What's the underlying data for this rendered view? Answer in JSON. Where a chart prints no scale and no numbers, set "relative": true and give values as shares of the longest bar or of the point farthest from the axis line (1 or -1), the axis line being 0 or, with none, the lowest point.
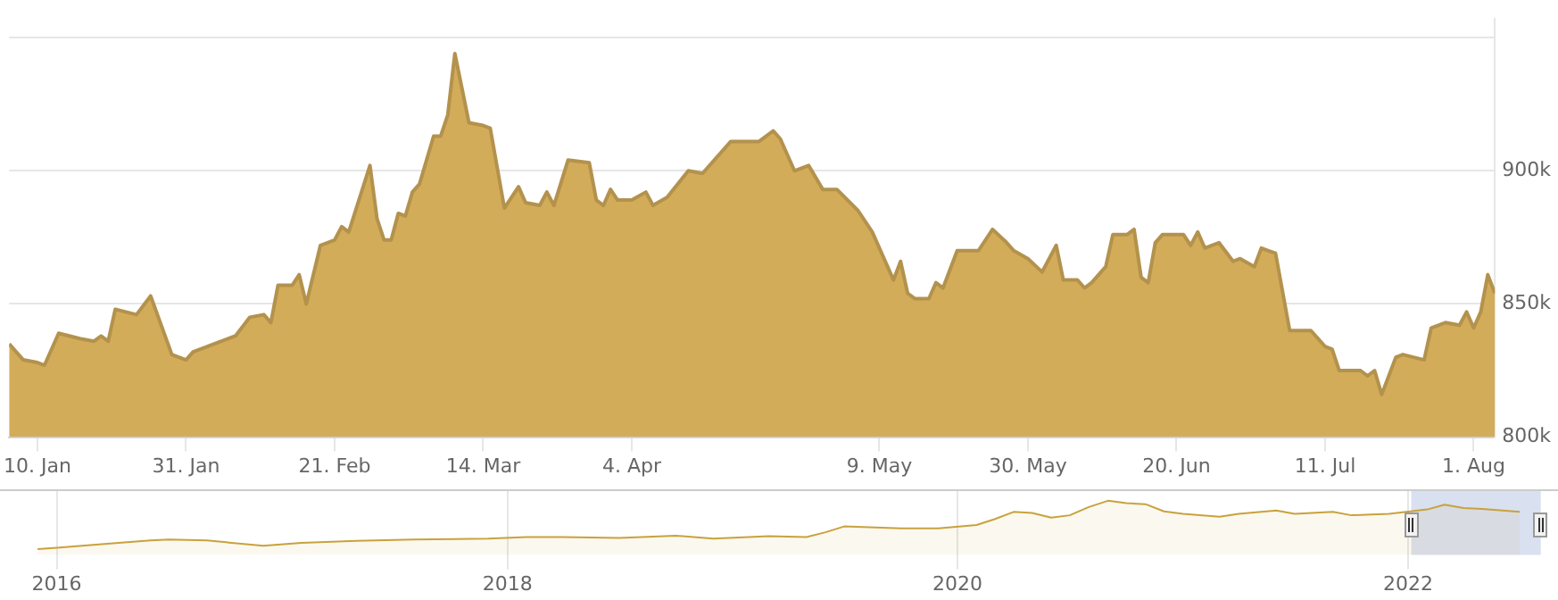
{
  "chart_data": [
    {
      "type": "area",
      "color": "#d3ac5a",
      "x": [
        "2022-01-06",
        "2022-01-08",
        "2022-01-10",
        "2022-01-11",
        "2022-01-13",
        "2022-01-16",
        "2022-01-18",
        "2022-01-19",
        "2022-01-20",
        "2022-01-21",
        "2022-01-24",
        "2022-01-26",
        "2022-01-29",
        "2022-01-31",
        "2022-02-01",
        "2022-02-05",
        "2022-02-07",
        "2022-02-09",
        "2022-02-11",
        "2022-02-12",
        "2022-02-13",
        "2022-02-15",
        "2022-02-16",
        "2022-02-17",
        "2022-02-19",
        "2022-02-21",
        "2022-02-22",
        "2022-02-23",
        "2022-02-26",
        "2022-02-27",
        "2022-02-28",
        "2022-03-01",
        "2022-03-02",
        "2022-03-03",
        "2022-03-04",
        "2022-03-05",
        "2022-03-07",
        "2022-03-08",
        "2022-03-09",
        "2022-03-10",
        "2022-03-12",
        "2022-03-14",
        "2022-03-15",
        "2022-03-16",
        "2022-03-17",
        "2022-03-19",
        "2022-03-20",
        "2022-03-22",
        "2022-03-23",
        "2022-03-24",
        "2022-03-26",
        "2022-03-29",
        "2022-03-30",
        "2022-03-31",
        "2022-04-01",
        "2022-04-02",
        "2022-04-04",
        "2022-04-06",
        "2022-04-07",
        "2022-04-09",
        "2022-04-12",
        "2022-04-14",
        "2022-04-18",
        "2022-04-22",
        "2022-04-24",
        "2022-04-25",
        "2022-04-27",
        "2022-04-29",
        "2022-05-01",
        "2022-05-03",
        "2022-05-06",
        "2022-05-08",
        "2022-05-11",
        "2022-05-12",
        "2022-05-13",
        "2022-05-14",
        "2022-05-16",
        "2022-05-17",
        "2022-05-18",
        "2022-05-20",
        "2022-05-23",
        "2022-05-25",
        "2022-05-27",
        "2022-05-28",
        "2022-05-30",
        "2022-06-01",
        "2022-06-03",
        "2022-06-04",
        "2022-06-06",
        "2022-06-07",
        "2022-06-08",
        "2022-06-10",
        "2022-06-11",
        "2022-06-13",
        "2022-06-14",
        "2022-06-15",
        "2022-06-16",
        "2022-06-17",
        "2022-06-18",
        "2022-06-21",
        "2022-06-22",
        "2022-06-23",
        "2022-06-24",
        "2022-06-26",
        "2022-06-28",
        "2022-06-29",
        "2022-07-01",
        "2022-07-02",
        "2022-07-03",
        "2022-07-04",
        "2022-07-06",
        "2022-07-09",
        "2022-07-11",
        "2022-07-12",
        "2022-07-13",
        "2022-07-16",
        "2022-07-17",
        "2022-07-18",
        "2022-07-19",
        "2022-07-21",
        "2022-07-22",
        "2022-07-25",
        "2022-07-26",
        "2022-07-28",
        "2022-07-30",
        "2022-07-31",
        "2022-08-01",
        "2022-08-02",
        "2022-08-03",
        "2022-08-04"
      ],
      "values": [
        835,
        829,
        828,
        827,
        839,
        837,
        836,
        838,
        836,
        848,
        846,
        853,
        831,
        829,
        832,
        836,
        838,
        845,
        846,
        843,
        857,
        857,
        861,
        850,
        872,
        874,
        879,
        877,
        902,
        882,
        874,
        874,
        884,
        883,
        892,
        895,
        913,
        913,
        921,
        944,
        918,
        917,
        916,
        901,
        886,
        894,
        888,
        887,
        892,
        887,
        904,
        903,
        889,
        887,
        893,
        889,
        889,
        892,
        887,
        890,
        900,
        899,
        911,
        911,
        915,
        912,
        900,
        902,
        893,
        893,
        885,
        877,
        859,
        866,
        854,
        852,
        852,
        858,
        856,
        870,
        870,
        878,
        873,
        870,
        867,
        862,
        872,
        859,
        859,
        856,
        858,
        864,
        876,
        876,
        878,
        860,
        858,
        873,
        876,
        876,
        872,
        877,
        871,
        873,
        866,
        867,
        864,
        871,
        870,
        869,
        840,
        840,
        834,
        833,
        825,
        825,
        823,
        825,
        816,
        830,
        831,
        829,
        841,
        843,
        842,
        847,
        841,
        847,
        861,
        854
      ],
      "xlim": [
        "2022-01-06",
        "2022-08-04"
      ],
      "xticks": [
        {
          "value": "2022-01-10",
          "label": "10. Jan"
        },
        {
          "value": "2022-01-31",
          "label": "31. Jan"
        },
        {
          "value": "2022-02-21",
          "label": "21. Feb"
        },
        {
          "value": "2022-03-14",
          "label": "14. Mar"
        },
        {
          "value": "2022-04-04",
          "label": "4. Apr"
        },
        {
          "value": "2022-05-09",
          "label": "9. May"
        },
        {
          "value": "2022-05-30",
          "label": "30. May"
        },
        {
          "value": "2022-06-20",
          "label": "20. Jun"
        },
        {
          "value": "2022-07-11",
          "label": "11. Jul"
        },
        {
          "value": "2022-08-01",
          "label": "1. Aug"
        }
      ],
      "ylim": [
        800,
        957
      ],
      "yticks": [
        {
          "value": 800,
          "label": "800k"
        },
        {
          "value": 850,
          "label": "850k"
        },
        {
          "value": 900,
          "label": "900k"
        },
        {
          "value": 950,
          "label": null
        }
      ],
      "grid": "y",
      "legend": false
    },
    {
      "type": "area",
      "relative": true,
      "color": "#c8a23c",
      "x": [
        "2015-12",
        "2016-01",
        "2016-04",
        "2016-06",
        "2016-07",
        "2016-09",
        "2016-12",
        "2017-02",
        "2017-05",
        "2017-08",
        "2017-12",
        "2018-02",
        "2018-04",
        "2018-07",
        "2018-10",
        "2018-12",
        "2019-03",
        "2019-05",
        "2019-06",
        "2019-07",
        "2019-10",
        "2019-12",
        "2020-02",
        "2020-03",
        "2020-04",
        "2020-05",
        "2020-06",
        "2020-07",
        "2020-08",
        "2020-09",
        "2020-10",
        "2020-11",
        "2020-12",
        "2021-01",
        "2021-03",
        "2021-04",
        "2021-06",
        "2021-07",
        "2021-09",
        "2021-10",
        "2021-12",
        "2022-02",
        "2022-03",
        "2022-04",
        "2022-05",
        "2022-07"
      ],
      "values": [
        0,
        0.03,
        0.12,
        0.18,
        0.2,
        0.18,
        0.07,
        0.13,
        0.17,
        0.2,
        0.22,
        0.25,
        0.25,
        0.23,
        0.28,
        0.22,
        0.27,
        0.25,
        0.35,
        0.47,
        0.43,
        0.43,
        0.5,
        0.62,
        0.77,
        0.75,
        0.65,
        0.7,
        0.87,
        1,
        0.95,
        0.93,
        0.78,
        0.73,
        0.67,
        0.73,
        0.8,
        0.73,
        0.77,
        0.7,
        0.73,
        0.82,
        0.92,
        0.85,
        0.83,
        0.77
      ],
      "xlim": [
        "2015-10",
        "2022-09"
      ],
      "xticks": [
        {
          "value": "2016",
          "label": "2016"
        },
        {
          "value": "2018",
          "label": "2018"
        },
        {
          "value": "2020",
          "label": "2020"
        },
        {
          "value": "2022",
          "label": "2022"
        }
      ],
      "bands": [
        {
          "axis": "x",
          "from": "2022-01-06",
          "to": "2022-08-04",
          "color": "#ccd6eb"
        }
      ],
      "grid": "x",
      "legend": false
    }
  ]
}
